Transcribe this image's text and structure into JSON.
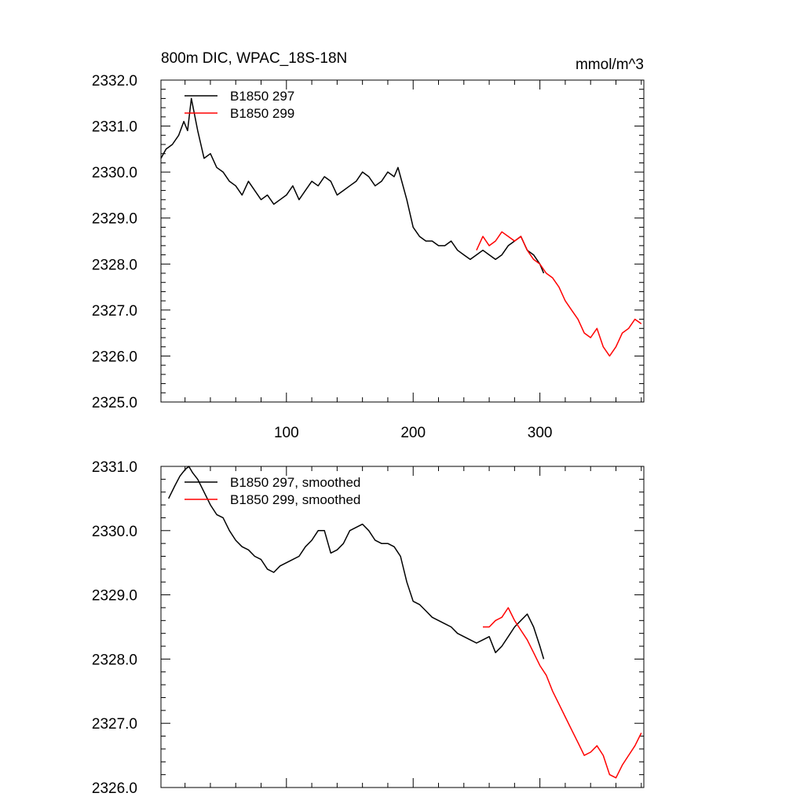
{
  "chart_data": [
    {
      "type": "line",
      "title": "800m DIC, WPAC_18S-18N",
      "units": "mmol/m^3",
      "xlim": [
        1,
        382
      ],
      "ylim": [
        2325.0,
        2332.0
      ],
      "yticks": [
        "2325.0",
        "2326.0",
        "2327.0",
        "2328.0",
        "2329.0",
        "2330.0",
        "2331.0",
        "2332.0"
      ],
      "xticks": [
        "100",
        "200",
        "300"
      ],
      "legend_position": "top-left",
      "series": [
        {
          "name": "B1850 297",
          "color": "#000000",
          "x": [
            1,
            5,
            10,
            15,
            19,
            22,
            25,
            30,
            35,
            40,
            45,
            50,
            55,
            60,
            65,
            70,
            75,
            80,
            85,
            90,
            95,
            100,
            105,
            110,
            115,
            120,
            125,
            130,
            135,
            140,
            145,
            150,
            155,
            160,
            165,
            170,
            175,
            180,
            185,
            188,
            190,
            195,
            200,
            205,
            210,
            215,
            220,
            225,
            230,
            235,
            240,
            245,
            250,
            255,
            260,
            265,
            270,
            275,
            280,
            285,
            290,
            295,
            300,
            303
          ],
          "y": [
            2330.3,
            2330.5,
            2330.6,
            2330.8,
            2331.1,
            2330.9,
            2331.6,
            2330.9,
            2330.3,
            2330.4,
            2330.1,
            2330.0,
            2329.8,
            2329.7,
            2329.5,
            2329.8,
            2329.6,
            2329.4,
            2329.5,
            2329.3,
            2329.4,
            2329.5,
            2329.7,
            2329.4,
            2329.6,
            2329.8,
            2329.7,
            2329.9,
            2329.8,
            2329.5,
            2329.6,
            2329.7,
            2329.8,
            2330.0,
            2329.9,
            2329.7,
            2329.8,
            2330.0,
            2329.9,
            2330.1,
            2329.9,
            2329.4,
            2328.8,
            2328.6,
            2328.5,
            2328.5,
            2328.4,
            2328.4,
            2328.5,
            2328.3,
            2328.2,
            2328.1,
            2328.2,
            2328.3,
            2328.2,
            2328.1,
            2328.2,
            2328.4,
            2328.5,
            2328.6,
            2328.3,
            2328.2,
            2328.0,
            2327.8
          ]
        },
        {
          "name": "B1850 299",
          "color": "#ff0000",
          "x": [
            250,
            255,
            260,
            265,
            270,
            275,
            280,
            285,
            290,
            295,
            300,
            305,
            310,
            315,
            320,
            325,
            330,
            335,
            340,
            345,
            350,
            355,
            360,
            365,
            370,
            375,
            380
          ],
          "y": [
            2328.3,
            2328.6,
            2328.4,
            2328.5,
            2328.7,
            2328.6,
            2328.5,
            2328.6,
            2328.3,
            2328.1,
            2328.0,
            2327.8,
            2327.7,
            2327.5,
            2327.2,
            2327.0,
            2326.8,
            2326.5,
            2326.4,
            2326.6,
            2326.2,
            2326.0,
            2326.2,
            2326.5,
            2326.6,
            2326.8,
            2326.7
          ]
        }
      ]
    },
    {
      "type": "line",
      "xlim": [
        1,
        382
      ],
      "ylim": [
        2326.0,
        2331.0
      ],
      "yticks": [
        "2326.0",
        "2327.0",
        "2328.0",
        "2329.0",
        "2330.0",
        "2331.0"
      ],
      "legend_position": "top-left",
      "series": [
        {
          "name": "B1850 297, smoothed",
          "color": "#000000",
          "x": [
            7,
            12,
            16,
            20,
            23,
            26,
            30,
            35,
            40,
            45,
            50,
            55,
            60,
            65,
            70,
            75,
            80,
            85,
            90,
            95,
            100,
            105,
            110,
            115,
            120,
            125,
            130,
            135,
            140,
            145,
            150,
            155,
            160,
            165,
            170,
            175,
            180,
            185,
            190,
            195,
            200,
            205,
            210,
            215,
            220,
            225,
            230,
            235,
            240,
            245,
            250,
            255,
            260,
            265,
            270,
            275,
            280,
            285,
            290,
            295,
            300,
            303
          ],
          "y": [
            2330.5,
            2330.7,
            2330.85,
            2330.95,
            2331.0,
            2330.9,
            2330.8,
            2330.6,
            2330.4,
            2330.25,
            2330.2,
            2330.0,
            2329.85,
            2329.75,
            2329.7,
            2329.6,
            2329.55,
            2329.4,
            2329.35,
            2329.45,
            2329.5,
            2329.55,
            2329.6,
            2329.75,
            2329.85,
            2330.0,
            2330.0,
            2329.65,
            2329.7,
            2329.8,
            2330.0,
            2330.05,
            2330.1,
            2330.0,
            2329.85,
            2329.8,
            2329.8,
            2329.75,
            2329.6,
            2329.2,
            2328.9,
            2328.85,
            2328.75,
            2328.65,
            2328.6,
            2328.55,
            2328.5,
            2328.4,
            2328.35,
            2328.3,
            2328.25,
            2328.3,
            2328.35,
            2328.1,
            2328.2,
            2328.35,
            2328.5,
            2328.6,
            2328.7,
            2328.5,
            2328.2,
            2328.0
          ]
        },
        {
          "name": "B1850 299, smoothed",
          "color": "#ff0000",
          "x": [
            255,
            260,
            265,
            270,
            275,
            280,
            285,
            290,
            295,
            300,
            305,
            310,
            315,
            320,
            325,
            330,
            335,
            340,
            345,
            350,
            355,
            360,
            365,
            370,
            375,
            380
          ],
          "y": [
            2328.5,
            2328.5,
            2328.6,
            2328.65,
            2328.8,
            2328.6,
            2328.45,
            2328.3,
            2328.1,
            2327.9,
            2327.75,
            2327.5,
            2327.3,
            2327.1,
            2326.9,
            2326.7,
            2326.5,
            2326.55,
            2326.65,
            2326.5,
            2326.2,
            2326.15,
            2326.35,
            2326.5,
            2326.65,
            2326.85
          ]
        }
      ]
    }
  ]
}
